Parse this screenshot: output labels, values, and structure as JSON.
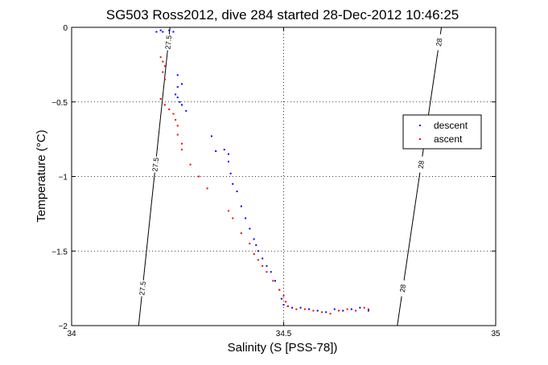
{
  "chart_data": {
    "type": "scatter",
    "title": "SG503 Ross2012, dive 284 started 28-Dec-2012 10:46:25",
    "xlabel": "Salinity (S [PSS-78])",
    "ylabel": "Temperature (°C)",
    "xlim": [
      34,
      35
    ],
    "ylim": [
      -2,
      0
    ],
    "x_ticks": [
      "34",
      "34.5",
      "35"
    ],
    "y_ticks": [
      "0",
      "-0.5",
      "-1",
      "-1.5",
      "-2"
    ],
    "grid": true,
    "legend_position": "right",
    "legend": [
      "descent",
      "ascent"
    ],
    "isopycnals": [
      {
        "label": "27.5",
        "points": [
          [
            34.158,
            -2
          ],
          [
            34.232,
            0
          ]
        ]
      },
      {
        "label": "28",
        "points": [
          [
            34.768,
            -2
          ],
          [
            34.872,
            0
          ]
        ]
      }
    ],
    "series": [
      {
        "name": "descent",
        "color": "#0000ff",
        "points": [
          [
            34.2,
            -0.03
          ],
          [
            34.21,
            -0.02
          ],
          [
            34.215,
            -0.03
          ],
          [
            34.23,
            -0.02
          ],
          [
            34.24,
            -0.03
          ],
          [
            34.25,
            -0.32
          ],
          [
            34.25,
            -0.4
          ],
          [
            34.26,
            -0.38
          ],
          [
            34.245,
            -0.45
          ],
          [
            34.25,
            -0.47
          ],
          [
            34.255,
            -0.5
          ],
          [
            34.26,
            -0.52
          ],
          [
            34.27,
            -0.56
          ],
          [
            34.33,
            -0.73
          ],
          [
            34.34,
            -0.83
          ],
          [
            34.36,
            -0.82
          ],
          [
            34.37,
            -0.85
          ],
          [
            34.37,
            -0.9
          ],
          [
            34.375,
            -0.98
          ],
          [
            34.38,
            -1.05
          ],
          [
            34.39,
            -1.1
          ],
          [
            34.4,
            -1.2
          ],
          [
            34.41,
            -1.28
          ],
          [
            34.42,
            -1.35
          ],
          [
            34.43,
            -1.42
          ],
          [
            34.435,
            -1.46
          ],
          [
            34.44,
            -1.5
          ],
          [
            34.45,
            -1.55
          ],
          [
            34.46,
            -1.6
          ],
          [
            34.47,
            -1.64
          ],
          [
            34.48,
            -1.7
          ],
          [
            34.49,
            -1.76
          ],
          [
            34.495,
            -1.82
          ],
          [
            34.5,
            -1.86
          ],
          [
            34.51,
            -1.87
          ],
          [
            34.52,
            -1.88
          ],
          [
            34.54,
            -1.88
          ],
          [
            34.56,
            -1.89
          ],
          [
            34.58,
            -1.9
          ],
          [
            34.6,
            -1.91
          ],
          [
            34.62,
            -1.89
          ],
          [
            34.64,
            -1.9
          ],
          [
            34.66,
            -1.89
          ],
          [
            34.68,
            -1.88
          ],
          [
            34.7,
            -1.9
          ]
        ]
      },
      {
        "name": "ascent",
        "color": "#ff0000",
        "points": [
          [
            34.21,
            -0.2
          ],
          [
            34.215,
            -0.23
          ],
          [
            34.22,
            -0.26
          ],
          [
            34.215,
            -0.3
          ],
          [
            34.22,
            -0.35
          ],
          [
            34.21,
            -0.48
          ],
          [
            34.22,
            -0.52
          ],
          [
            34.23,
            -0.55
          ],
          [
            34.24,
            -0.58
          ],
          [
            34.245,
            -0.62
          ],
          [
            34.25,
            -0.66
          ],
          [
            34.25,
            -0.72
          ],
          [
            34.26,
            -0.78
          ],
          [
            34.26,
            -0.82
          ],
          [
            34.28,
            -0.92
          ],
          [
            34.3,
            -1.0
          ],
          [
            34.32,
            -1.08
          ],
          [
            34.37,
            -1.23
          ],
          [
            34.38,
            -1.28
          ],
          [
            34.4,
            -1.38
          ],
          [
            34.42,
            -1.45
          ],
          [
            34.43,
            -1.52
          ],
          [
            34.44,
            -1.56
          ],
          [
            34.45,
            -1.6
          ],
          [
            34.46,
            -1.64
          ],
          [
            34.475,
            -1.7
          ],
          [
            34.49,
            -1.76
          ],
          [
            34.5,
            -1.8
          ],
          [
            34.505,
            -1.84
          ],
          [
            34.51,
            -1.87
          ],
          [
            34.53,
            -1.89
          ],
          [
            34.55,
            -1.89
          ],
          [
            34.57,
            -1.9
          ],
          [
            34.59,
            -1.91
          ],
          [
            34.61,
            -1.92
          ],
          [
            34.63,
            -1.9
          ],
          [
            34.65,
            -1.89
          ],
          [
            34.67,
            -1.9
          ],
          [
            34.69,
            -1.88
          ],
          [
            34.7,
            -1.89
          ]
        ]
      }
    ]
  }
}
